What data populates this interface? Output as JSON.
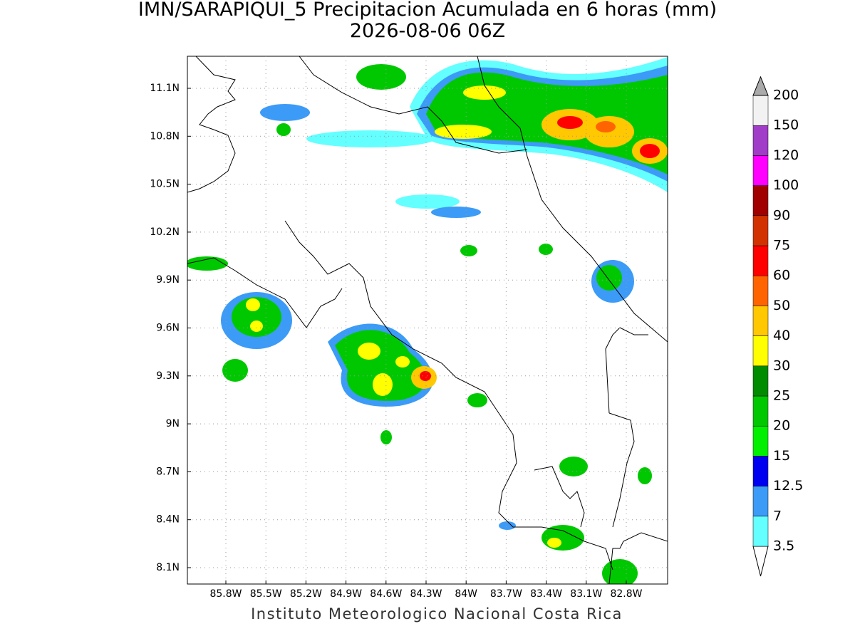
{
  "title": "IMN/SARAPIQUI_5 Precipitacion Acumulada en 6 horas (mm)",
  "subtitle": "2026-08-06 06Z",
  "footer": "Instituto Meteorologico Nacional Costa Rica",
  "map": {
    "x_labels": [
      "85.8W",
      "85.5W",
      "85.2W",
      "84.9W",
      "84.6W",
      "84.3W",
      "84W",
      "83.7W",
      "83.4W",
      "83.1W",
      "82.8W"
    ],
    "y_labels": [
      "11.1N",
      "10.8N",
      "10.5N",
      "10.2N",
      "9.9N",
      "9.6N",
      "9.3N",
      "9N",
      "8.7N",
      "8.4N",
      "8.1N"
    ]
  },
  "colorbar": {
    "levels": [
      3.5,
      7,
      12.5,
      15,
      20,
      25,
      30,
      40,
      50,
      60,
      75,
      90,
      100,
      120,
      150,
      200
    ],
    "colors": [
      "#64ffff",
      "#3c9bf6",
      "#0000f0",
      "#00f000",
      "#00c800",
      "#008c00",
      "#ffff00",
      "#ffc800",
      "#ff6400",
      "#ff0000",
      "#d23200",
      "#a00000",
      "#ff00ff",
      "#a03cc8",
      "#f2f2f2",
      "#aaaaaa"
    ]
  }
}
